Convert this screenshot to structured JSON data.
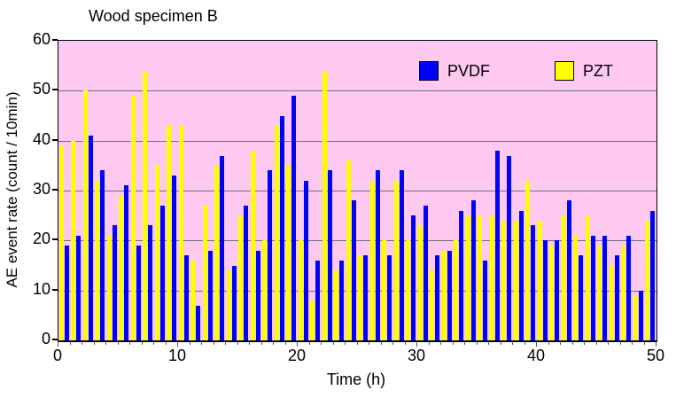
{
  "chart_data": {
    "type": "bar",
    "title": "Wood specimen B",
    "xlabel": "Time (h)",
    "ylabel": "AE event rate (count / 10min)",
    "ylim": [
      0,
      60
    ],
    "xlim": [
      0,
      50
    ],
    "y_ticks": [
      0,
      10,
      20,
      30,
      40,
      50,
      60
    ],
    "x_ticks": [
      0,
      10,
      20,
      30,
      40,
      50
    ],
    "grid": "horizontal",
    "legend_position": "top-inside",
    "plot_bg_color": "#FDC9F0",
    "grid_color": "#707070",
    "hours": [
      1,
      2,
      3,
      4,
      5,
      6,
      7,
      8,
      9,
      10,
      11,
      12,
      13,
      14,
      15,
      16,
      17,
      18,
      19,
      20,
      21,
      22,
      23,
      24,
      25,
      26,
      27,
      28,
      29,
      30,
      31,
      32,
      33,
      34,
      35,
      36,
      37,
      38,
      39,
      40,
      41,
      42,
      43,
      44,
      45,
      46,
      47,
      48,
      49,
      50
    ],
    "series": [
      {
        "name": "PVDF",
        "color": "#0000FF",
        "values": [
          19,
          21,
          41,
          34,
          23,
          31,
          19,
          23,
          27,
          33,
          17,
          7,
          18,
          37,
          15,
          27,
          18,
          34,
          45,
          49,
          32,
          16,
          34,
          16,
          28,
          17,
          34,
          17,
          34,
          25,
          27,
          17,
          18,
          26,
          28,
          16,
          38,
          37,
          26,
          23,
          20,
          20,
          28,
          17,
          21,
          21,
          17,
          21,
          10,
          26
        ]
      },
      {
        "name": "PZT",
        "color": "#FFFF00",
        "values": [
          39,
          40,
          50,
          32,
          21,
          29,
          49,
          54,
          35,
          43,
          43,
          16,
          27,
          35,
          14,
          25,
          38,
          20,
          43,
          35,
          20,
          8,
          54,
          14,
          36,
          17,
          32,
          20,
          32,
          20,
          23,
          14,
          18,
          20,
          25,
          25,
          25,
          24,
          24,
          32,
          24,
          19,
          25,
          21,
          25,
          19,
          15,
          19,
          9,
          24
        ]
      }
    ],
    "bar_order_note": "PZT (yellow) bar drawn on left of each hour slot, PVDF (blue) on right"
  }
}
